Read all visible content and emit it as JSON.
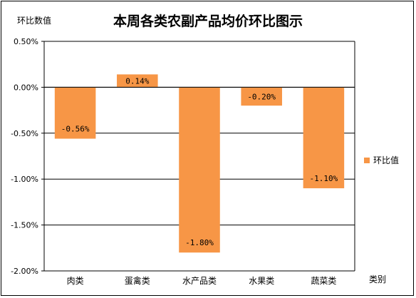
{
  "chart_data": {
    "type": "bar",
    "title": "本周各类农副产品均价环比图示",
    "ylabel": "环比数值",
    "xlabel": "类别",
    "categories": [
      "肉类",
      "蛋禽类",
      "水产品类",
      "水果类",
      "蔬菜类"
    ],
    "series": [
      {
        "name": "环比值",
        "values": [
          -0.56,
          0.14,
          -1.8,
          -0.2,
          -1.1
        ],
        "labels": [
          "-0.56%",
          "0.14%",
          "-1.80%",
          "-0.20%",
          "-1.10%"
        ]
      }
    ],
    "ylim": [
      -2.0,
      0.5
    ],
    "yticks": [
      0.5,
      0.0,
      -0.5,
      -1.0,
      -1.5,
      -2.0
    ],
    "ytick_labels": [
      "0.50%",
      "0.00%",
      "-0.50%",
      "-1.00%",
      "-1.50%",
      "-2.00%"
    ],
    "grid": true,
    "legend_position": "right",
    "bar_color": "#F79646"
  }
}
